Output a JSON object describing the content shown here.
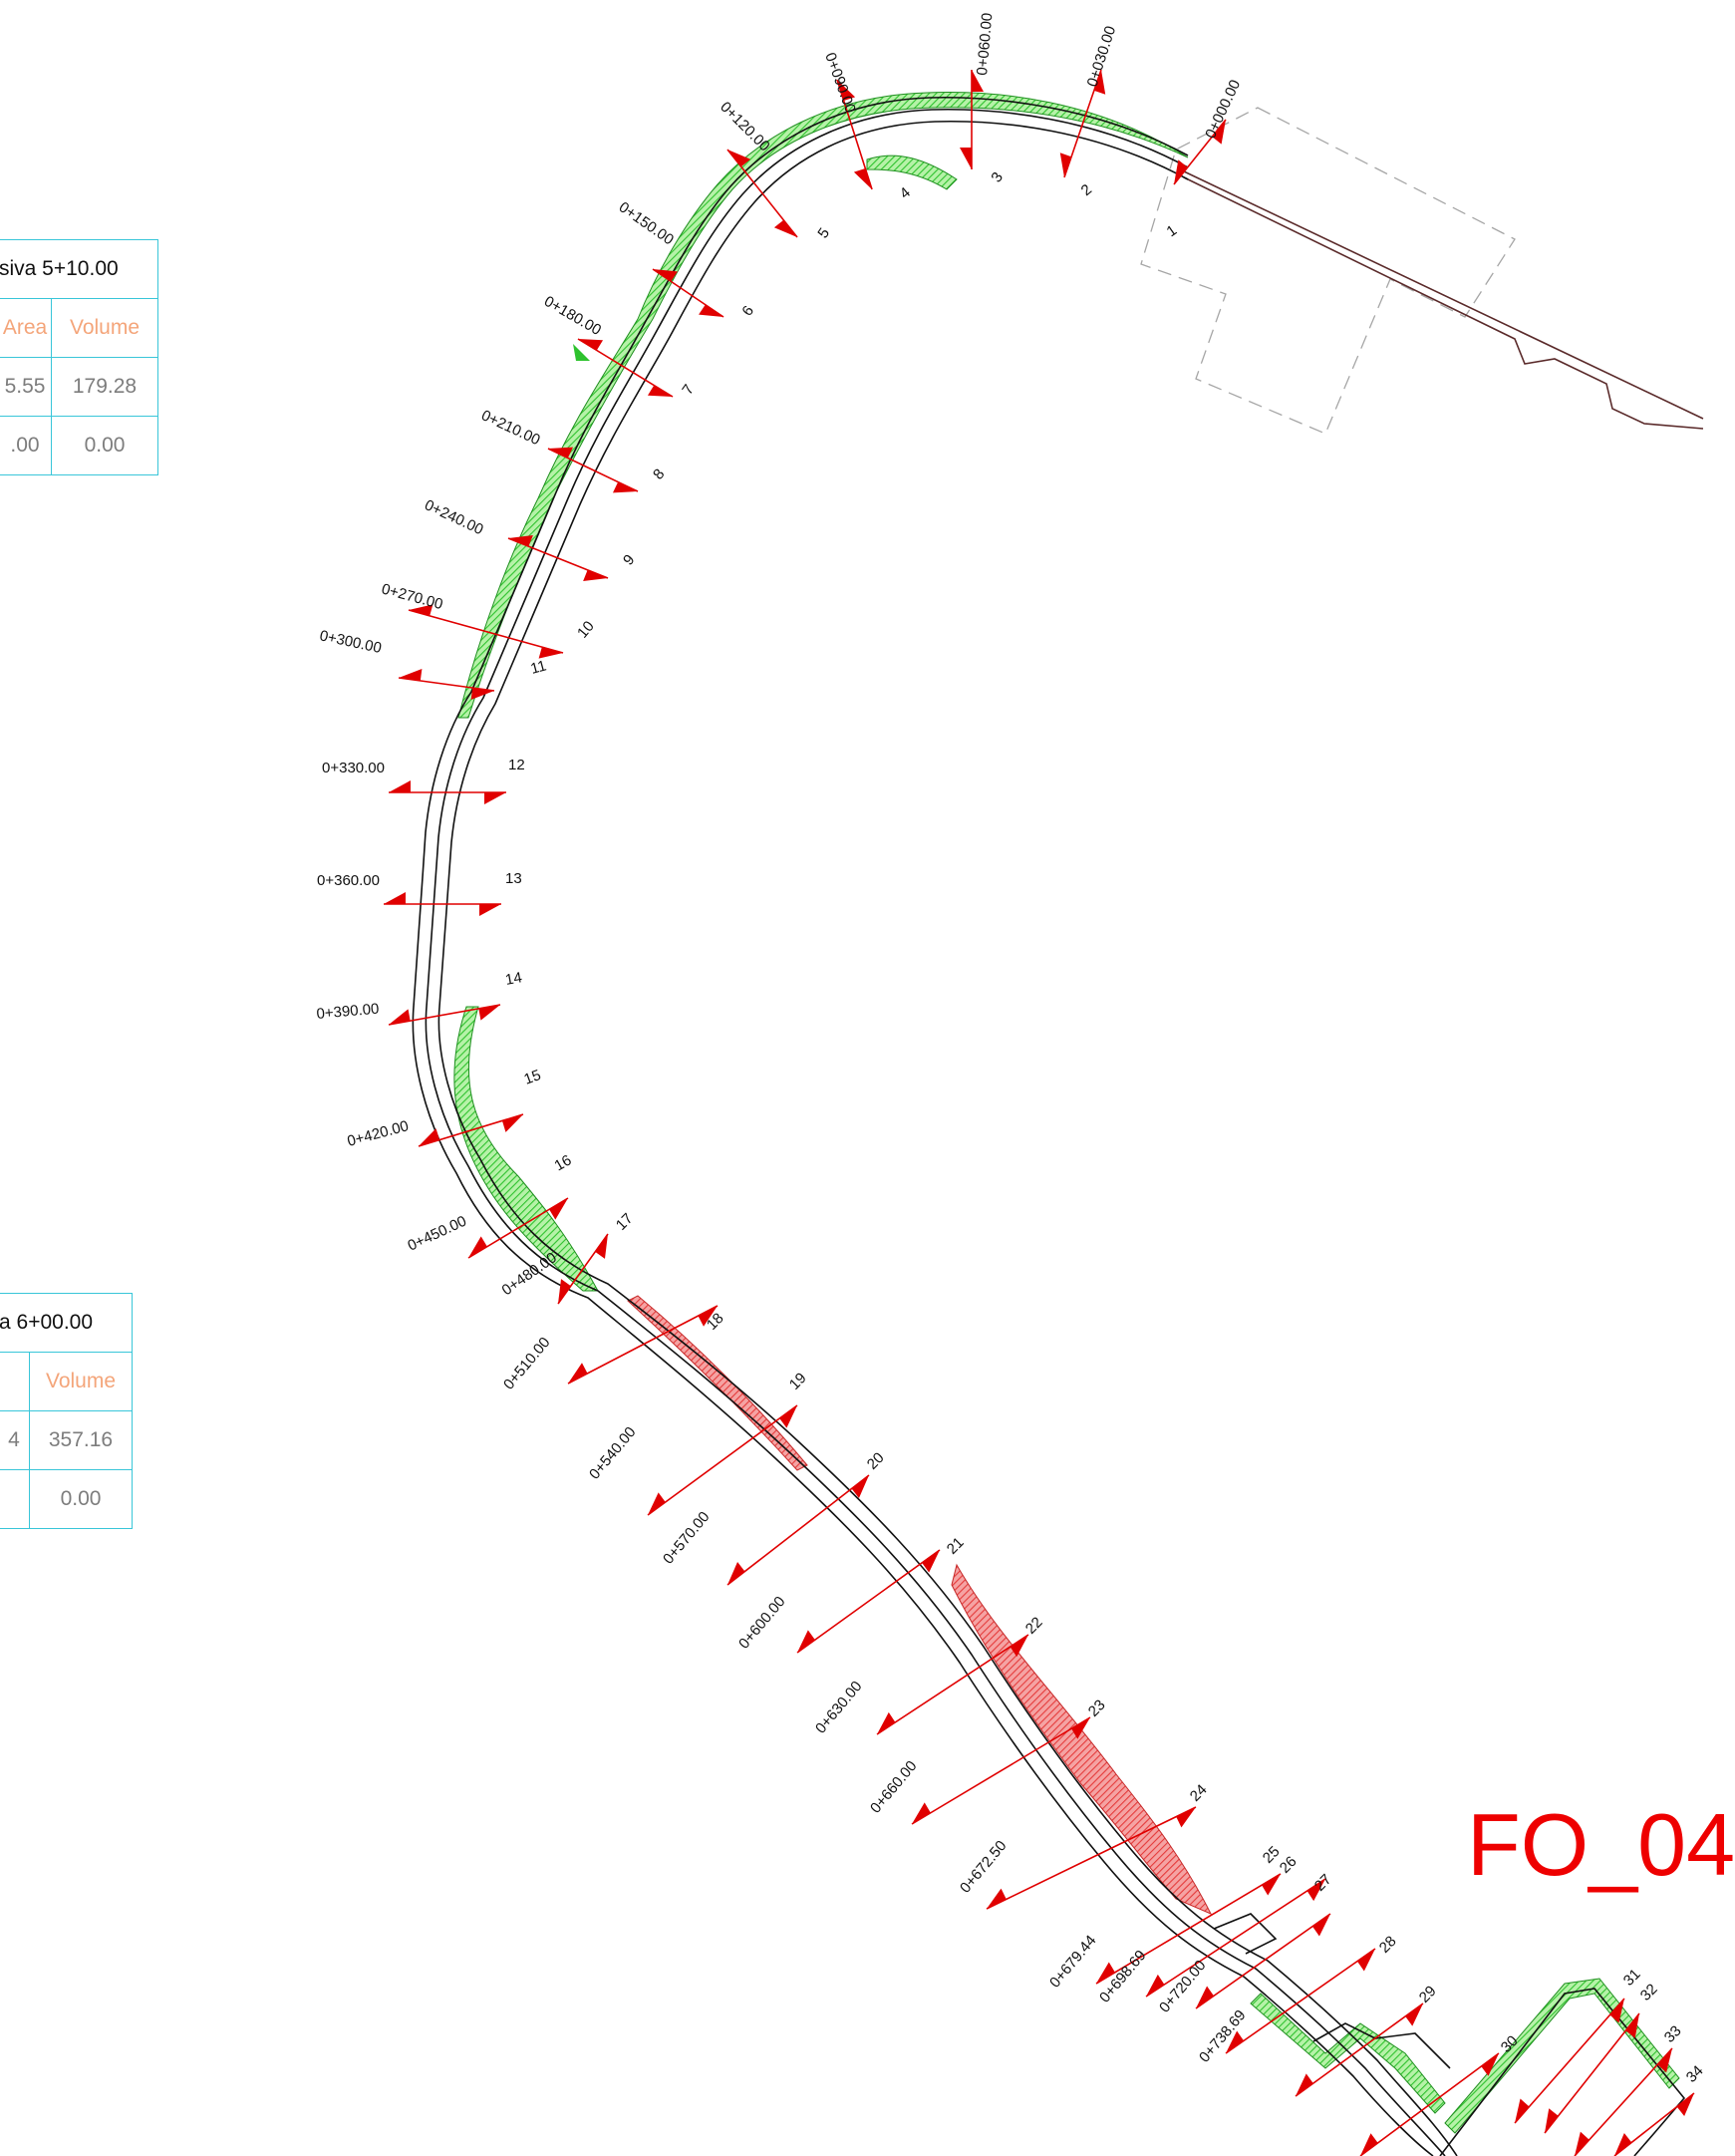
{
  "tables": [
    {
      "title": "siva 5+10.00",
      "headers": [
        "Area",
        "Volume"
      ],
      "rows": [
        [
          "5.55",
          "179.28"
        ],
        [
          ".00",
          "0.00"
        ]
      ]
    },
    {
      "title": "a 6+00.00",
      "headers": [
        "",
        "Volume"
      ],
      "rows": [
        [
          "4",
          "357.16"
        ],
        [
          "",
          "0.00"
        ]
      ]
    }
  ],
  "sheet_label": "FO_04",
  "colors": {
    "fill_cut": "#2ec22e",
    "fill_cut_light": "#b6f2a8",
    "fill_fill": "#e53b3b",
    "fill_fill_light": "#f5a3a3",
    "section_line": "#e00000",
    "road_line": "#111111",
    "table_border": "#39c6d9",
    "header_text": "#f4a57a",
    "label_red": "#ee0000"
  },
  "stations": [
    {
      "label": "0+000.00",
      "number": "1"
    },
    {
      "label": "0+030.00",
      "number": "2"
    },
    {
      "label": "0+060.00",
      "number": "3"
    },
    {
      "label": "0+090.00",
      "number": "4"
    },
    {
      "label": "0+120.00",
      "number": "5"
    },
    {
      "label": "0+150.00",
      "number": "6"
    },
    {
      "label": "0+180.00",
      "number": "7"
    },
    {
      "label": "0+210.00",
      "number": "8"
    },
    {
      "label": "0+240.00",
      "number": "9"
    },
    {
      "label": "0+270.00",
      "number": "10"
    },
    {
      "label": "0+300.00",
      "number": "11"
    },
    {
      "label": "0+330.00",
      "number": "12"
    },
    {
      "label": "0+360.00",
      "number": "13"
    },
    {
      "label": "0+390.00",
      "number": "14"
    },
    {
      "label": "0+420.00",
      "number": "15"
    },
    {
      "label": "0+450.00",
      "number": "16"
    },
    {
      "label": "0+480.00",
      "number": "17"
    },
    {
      "label": "0+510.00",
      "number": "18"
    },
    {
      "label": "0+540.00",
      "number": "19"
    },
    {
      "label": "0+570.00",
      "number": "20"
    },
    {
      "label": "0+600.00",
      "number": "21"
    },
    {
      "label": "0+630.00",
      "number": "22"
    },
    {
      "label": "0+660.00",
      "number": "23"
    },
    {
      "label": "0+672.50",
      "number": "24"
    },
    {
      "label": "0+679.44",
      "number": "25"
    },
    {
      "label": "0+698.69",
      "number": "26"
    },
    {
      "label": "0+720.00",
      "number": "27"
    },
    {
      "label": "0+738.69",
      "number": "28"
    },
    {
      "label": "",
      "number": "29"
    },
    {
      "label": "",
      "number": "30"
    },
    {
      "label": "",
      "number": "31"
    },
    {
      "label": "",
      "number": "32"
    },
    {
      "label": "",
      "number": "33"
    },
    {
      "label": "",
      "number": "34"
    }
  ]
}
